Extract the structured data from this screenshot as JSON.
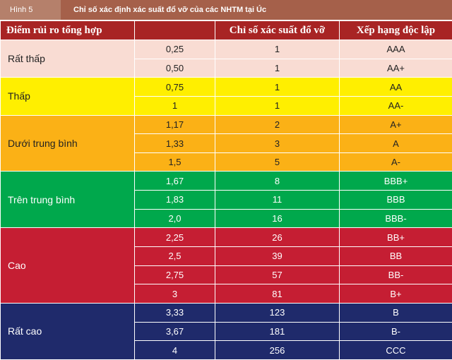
{
  "caption": {
    "figure_label": "Hình 5",
    "title": "Chỉ số xác định xác suất đổ vỡ của các NHTM tại Úc"
  },
  "table": {
    "headers": [
      "Điểm rủi ro tổng hợp",
      "",
      "Chỉ số xác suất đổ vỡ",
      "Xếp hạng độc lập"
    ],
    "groups": [
      {
        "category": "Rất thấp",
        "color": "#f9dcd3",
        "rows": [
          {
            "score": "0,25",
            "index": "1",
            "rating": "AAA"
          },
          {
            "score": "0,50",
            "index": "1",
            "rating": "AA+"
          }
        ]
      },
      {
        "category": "Thấp",
        "color": "#ffef00",
        "rows": [
          {
            "score": "0,75",
            "index": "1",
            "rating": "AA"
          },
          {
            "score": "1",
            "index": "1",
            "rating": "AA-"
          }
        ]
      },
      {
        "category": "Dưới trung bình",
        "color": "#fbb116",
        "rows": [
          {
            "score": "1,17",
            "index": "2",
            "rating": "A+"
          },
          {
            "score": "1,33",
            "index": "3",
            "rating": "A"
          },
          {
            "score": "1,5",
            "index": "5",
            "rating": "A-"
          }
        ]
      },
      {
        "category": "Trên trung bình",
        "color": "#00a84c",
        "rows": [
          {
            "score": "1,67",
            "index": "8",
            "rating": "BBB+"
          },
          {
            "score": "1,83",
            "index": "11",
            "rating": "BBB"
          },
          {
            "score": "2,0",
            "index": "16",
            "rating": "BBB-"
          }
        ]
      },
      {
        "category": "Cao",
        "color": "#c51e33",
        "rows": [
          {
            "score": "2,25",
            "index": "26",
            "rating": "BB+"
          },
          {
            "score": "2,5",
            "index": "39",
            "rating": "BB"
          },
          {
            "score": "2,75",
            "index": "57",
            "rating": "BB-"
          },
          {
            "score": "3",
            "index": "81",
            "rating": "B+"
          }
        ]
      },
      {
        "category": "Rất cao",
        "color": "#1f2a6b",
        "rows": [
          {
            "score": "3,33",
            "index": "123",
            "rating": "B"
          },
          {
            "score": "3,67",
            "index": "181",
            "rating": "B-"
          },
          {
            "score": "4",
            "index": "256",
            "rating": "CCC"
          }
        ]
      }
    ]
  }
}
